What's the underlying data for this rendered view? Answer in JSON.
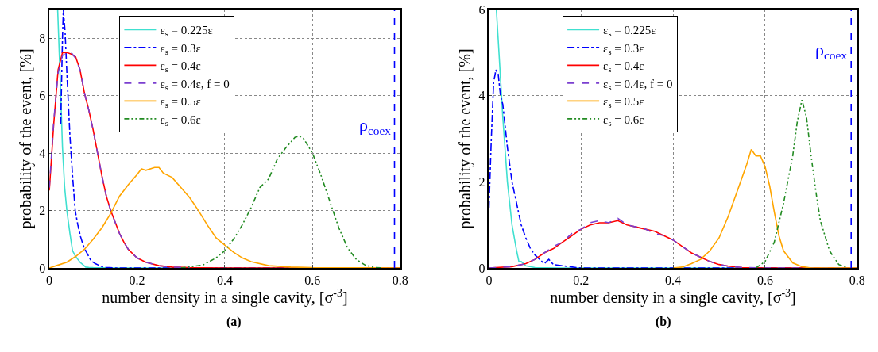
{
  "chart_data": [
    {
      "type": "line",
      "xlabel": "number density in a single cavity, [σ$^{-3}$]",
      "ylabel": "probability of the event, [%]",
      "xlim": [
        0,
        0.8
      ],
      "xticks": [
        0,
        0.2,
        0.4,
        0.6,
        0.8
      ],
      "ylim": [
        0,
        9
      ],
      "yticks": [
        0,
        2,
        4,
        6,
        8
      ],
      "grid": true,
      "legend": "top",
      "annotations": [
        "(a)"
      ],
      "ref_lines": [
        {
          "axis": "x",
          "value": 0.787,
          "label": "ρ$_{coex}$",
          "color": "#0000ff",
          "line_style": "dashed"
        }
      ],
      "series": [
        {
          "name": "ε$_{s}$ = 0.225ε",
          "color": "#40e0d0",
          "line_style": "solid",
          "x": [
            0.019,
            0.025,
            0.03,
            0.035,
            0.04,
            0.047,
            0.053,
            0.06,
            0.065,
            0.07,
            0.083,
            0.09,
            0.1,
            0.15,
            0.8
          ],
          "values": [
            9.0,
            6.5,
            4.2,
            2.8,
            2.0,
            1.2,
            0.6,
            0.4,
            0.3,
            0.2,
            0.03,
            0.02,
            0.01,
            0,
            0
          ]
        },
        {
          "name": "ε$_{s}$ = 0.3ε",
          "color": "#0000ff",
          "line_style": "dashdot",
          "x": [
            0.026,
            0.03,
            0.032,
            0.036,
            0.04,
            0.047,
            0.053,
            0.059,
            0.065,
            0.071,
            0.077,
            0.083,
            0.09,
            0.095,
            0.105,
            0.112,
            0.12,
            0.13,
            0.15,
            0.8
          ],
          "values": [
            5.0,
            8.0,
            9.0,
            8.2,
            6.8,
            4.6,
            3.2,
            2.0,
            1.5,
            1.1,
            0.8,
            0.6,
            0.4,
            0.25,
            0.15,
            0.1,
            0.05,
            0.02,
            0,
            0
          ]
        },
        {
          "name": "ε$_{s}$ = 0.4ε",
          "color": "#ff0000",
          "line_style": "solid",
          "x": [
            0,
            0.01,
            0.02,
            0.03,
            0.04,
            0.05,
            0.06,
            0.07,
            0.08,
            0.09,
            0.1,
            0.11,
            0.12,
            0.13,
            0.14,
            0.15,
            0.16,
            0.17,
            0.18,
            0.2,
            0.22,
            0.25,
            0.28,
            0.32,
            0.4,
            0.8
          ],
          "values": [
            2.7,
            5.0,
            6.9,
            7.5,
            7.5,
            7.45,
            7.35,
            6.9,
            6.1,
            5.5,
            4.8,
            4.0,
            3.2,
            2.5,
            2.0,
            1.6,
            1.2,
            0.9,
            0.65,
            0.35,
            0.2,
            0.08,
            0.03,
            0.01,
            0,
            0
          ]
        },
        {
          "name": "ε$_{s}$ = 0.4ε, f = 0",
          "color": "#7b3fd0",
          "line_style": "dashed",
          "x": [
            0,
            0.01,
            0.02,
            0.03,
            0.04,
            0.05,
            0.06,
            0.07,
            0.08,
            0.09,
            0.1,
            0.11,
            0.12,
            0.13,
            0.14,
            0.15,
            0.16,
            0.17,
            0.18,
            0.2,
            0.22,
            0.25,
            0.28,
            0.32
          ],
          "values": [
            2.8,
            5.1,
            6.8,
            7.4,
            7.5,
            7.5,
            7.3,
            6.9,
            6.1,
            5.5,
            4.8,
            4.0,
            3.2,
            2.5,
            2.0,
            1.6,
            1.2,
            0.9,
            0.65,
            0.35,
            0.2,
            0.08,
            0.03,
            0.01
          ]
        },
        {
          "name": "ε$_{s}$ = 0.5ε",
          "color": "#ffa500",
          "line_style": "solid",
          "x": [
            0,
            0.02,
            0.04,
            0.06,
            0.08,
            0.1,
            0.12,
            0.14,
            0.16,
            0.18,
            0.2,
            0.21,
            0.22,
            0.24,
            0.25,
            0.26,
            0.28,
            0.3,
            0.32,
            0.34,
            0.36,
            0.38,
            0.4,
            0.42,
            0.44,
            0.46,
            0.5,
            0.55,
            0.6,
            0.8
          ],
          "values": [
            0,
            0.1,
            0.2,
            0.4,
            0.65,
            1.0,
            1.4,
            1.9,
            2.5,
            2.9,
            3.25,
            3.45,
            3.4,
            3.5,
            3.5,
            3.3,
            3.15,
            2.8,
            2.45,
            2.0,
            1.5,
            1.05,
            0.8,
            0.55,
            0.35,
            0.22,
            0.08,
            0.03,
            0.01,
            0
          ]
        },
        {
          "name": "ε$_{s}$ = 0.6ε",
          "color": "#228b22",
          "line_style": "dashdotdot",
          "x": [
            0.3,
            0.35,
            0.38,
            0.4,
            0.42,
            0.44,
            0.46,
            0.48,
            0.5,
            0.52,
            0.54,
            0.56,
            0.57,
            0.58,
            0.6,
            0.62,
            0.64,
            0.66,
            0.68,
            0.7,
            0.72,
            0.74,
            0.76
          ],
          "values": [
            0,
            0.1,
            0.35,
            0.6,
            1.0,
            1.5,
            2.1,
            2.8,
            3.1,
            3.8,
            4.2,
            4.55,
            4.6,
            4.5,
            4.0,
            3.2,
            2.3,
            1.4,
            0.7,
            0.3,
            0.1,
            0.02,
            0
          ]
        }
      ]
    },
    {
      "type": "line",
      "xlabel": "number density in a single cavity, [σ$^{-3}$]",
      "ylabel": "probability of the event, [%]",
      "xlim": [
        0,
        0.8
      ],
      "xticks": [
        0,
        0.2,
        0.4,
        0.6,
        0.8
      ],
      "ylim": [
        0,
        6
      ],
      "yticks": [
        0,
        2,
        4,
        6
      ],
      "grid": true,
      "legend": "top",
      "annotations": [
        "(b)"
      ],
      "ref_lines": [
        {
          "axis": "x",
          "value": 0.787,
          "label": "ρ$_{coex}$",
          "color": "#0000ff",
          "line_style": "dashed"
        }
      ],
      "series": [
        {
          "name": "ε$_{s}$ = 0.225ε",
          "color": "#40e0d0",
          "line_style": "solid",
          "x": [
            0.016,
            0.02,
            0.03,
            0.04,
            0.05,
            0.06,
            0.065,
            0.07,
            0.08,
            0.1,
            0.15,
            0.8
          ],
          "values": [
            6.0,
            5.3,
            3.5,
            2.0,
            1.0,
            0.4,
            0.15,
            0.15,
            0.05,
            0.01,
            0,
            0
          ]
        },
        {
          "name": "ε$_{s}$ = 0.3ε",
          "color": "#0000ff",
          "line_style": "dashdot",
          "x": [
            0,
            0.005,
            0.01,
            0.015,
            0.02,
            0.025,
            0.03,
            0.035,
            0.04,
            0.05,
            0.06,
            0.07,
            0.08,
            0.09,
            0.1,
            0.11,
            0.12,
            0.13,
            0.14,
            0.16,
            0.19,
            0.2,
            0.8
          ],
          "values": [
            1.4,
            3.0,
            4.3,
            4.6,
            4.5,
            4.0,
            3.8,
            3.3,
            2.8,
            2.0,
            1.5,
            1.0,
            0.7,
            0.45,
            0.3,
            0.2,
            0.1,
            0.2,
            0.08,
            0.05,
            0.01,
            0,
            0
          ]
        },
        {
          "name": "ε$_{s}$ = 0.4ε",
          "color": "#ff0000",
          "line_style": "solid",
          "x": [
            0,
            0.05,
            0.08,
            0.1,
            0.12,
            0.14,
            0.16,
            0.18,
            0.2,
            0.22,
            0.24,
            0.26,
            0.28,
            0.3,
            0.32,
            0.34,
            0.36,
            0.38,
            0.4,
            0.42,
            0.44,
            0.46,
            0.48,
            0.5,
            0.52,
            0.55,
            0.6,
            0.8
          ],
          "values": [
            0,
            0.03,
            0.1,
            0.2,
            0.35,
            0.45,
            0.6,
            0.75,
            0.9,
            1.0,
            1.05,
            1.05,
            1.1,
            1.0,
            0.95,
            0.9,
            0.85,
            0.75,
            0.65,
            0.5,
            0.35,
            0.25,
            0.15,
            0.08,
            0.04,
            0.01,
            0,
            0
          ]
        },
        {
          "name": "ε$_{s}$ = 0.4ε, f = 0",
          "color": "#7b3fd0",
          "line_style": "dashed",
          "x": [
            0,
            0.05,
            0.08,
            0.1,
            0.12,
            0.14,
            0.16,
            0.18,
            0.2,
            0.22,
            0.24,
            0.26,
            0.28,
            0.3,
            0.32,
            0.34,
            0.36,
            0.38,
            0.4,
            0.42,
            0.44,
            0.46,
            0.48,
            0.5,
            0.52,
            0.55,
            0.6,
            0.8
          ],
          "values": [
            0,
            0.03,
            0.1,
            0.2,
            0.35,
            0.5,
            0.6,
            0.8,
            0.9,
            1.05,
            1.1,
            1.05,
            1.15,
            1.0,
            0.95,
            0.9,
            0.8,
            0.75,
            0.65,
            0.5,
            0.35,
            0.25,
            0.15,
            0.08,
            0.04,
            0.01,
            0,
            0
          ]
        },
        {
          "name": "ε$_{s}$ = 0.5ε",
          "color": "#ffa500",
          "line_style": "solid",
          "x": [
            0.4,
            0.42,
            0.44,
            0.46,
            0.48,
            0.5,
            0.52,
            0.54,
            0.56,
            0.57,
            0.58,
            0.59,
            0.6,
            0.61,
            0.62,
            0.63,
            0.64,
            0.66,
            0.68,
            0.7,
            0.8
          ],
          "values": [
            0,
            0.02,
            0.1,
            0.2,
            0.4,
            0.7,
            1.2,
            1.8,
            2.4,
            2.75,
            2.6,
            2.6,
            2.35,
            1.9,
            1.3,
            0.75,
            0.4,
            0.12,
            0.03,
            0,
            0
          ]
        },
        {
          "name": "ε$_{s}$ = 0.6ε",
          "color": "#228b22",
          "line_style": "dashdotdot",
          "x": [
            0.58,
            0.6,
            0.62,
            0.64,
            0.66,
            0.67,
            0.68,
            0.69,
            0.7,
            0.71,
            0.72,
            0.74,
            0.76,
            0.78
          ],
          "values": [
            0,
            0.15,
            0.6,
            1.5,
            2.6,
            3.4,
            3.9,
            3.5,
            2.6,
            1.8,
            1.1,
            0.4,
            0.08,
            0
          ]
        }
      ]
    }
  ]
}
